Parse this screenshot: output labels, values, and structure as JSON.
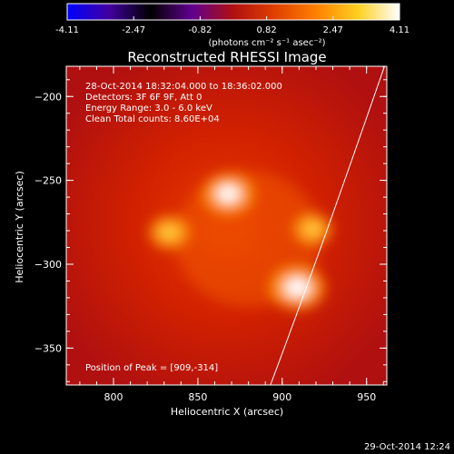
{
  "colorbar": {
    "ticks": [
      "-4.11",
      "-2.47",
      "-0.82",
      "0.82",
      "2.47",
      "4.11"
    ],
    "unit_label": "(photons cm⁻² s⁻¹ asec⁻²)",
    "stops": [
      "#0000ff",
      "#4000a0",
      "#000000",
      "#600090",
      "#b01010",
      "#e04000",
      "#ff8000",
      "#ffd020",
      "#ffffff"
    ]
  },
  "chart_data": {
    "type": "heatmap",
    "title": "Reconstructed RHESSI Image",
    "xlabel": "Heliocentric X (arcsec)",
    "ylabel": "Heliocentric Y (arcsec)",
    "xlim": [
      772,
      962
    ],
    "ylim": [
      -372,
      -182
    ],
    "xticks": [
      "800",
      "850",
      "900",
      "950"
    ],
    "yticks": [
      "-200",
      "-250",
      "-300",
      "-350"
    ],
    "info_lines": [
      "28-Oct-2014 18:32:04.000 to 18:36:02.000",
      "Detectors: 3F 6F 9F, Att 0",
      "Energy Range: 3.0 - 6.0 keV",
      "Clean    Total counts: 8.60E+04"
    ],
    "peak_label": "Position of Peak = [909,-314]",
    "peak": [
      909,
      -314
    ],
    "sources": [
      {
        "x": 868,
        "y": -258,
        "intensity": 0.9
      },
      {
        "x": 909,
        "y": -314,
        "intensity": 1.0
      },
      {
        "x": 833,
        "y": -281,
        "intensity": 0.65
      },
      {
        "x": 918,
        "y": -279,
        "intensity": 0.6
      }
    ],
    "limb_line": [
      [
        962,
        -178
      ],
      [
        920,
        -300
      ],
      [
        893,
        -372
      ]
    ]
  },
  "footer": {
    "timestamp": "29-Oct-2014 12:24"
  }
}
